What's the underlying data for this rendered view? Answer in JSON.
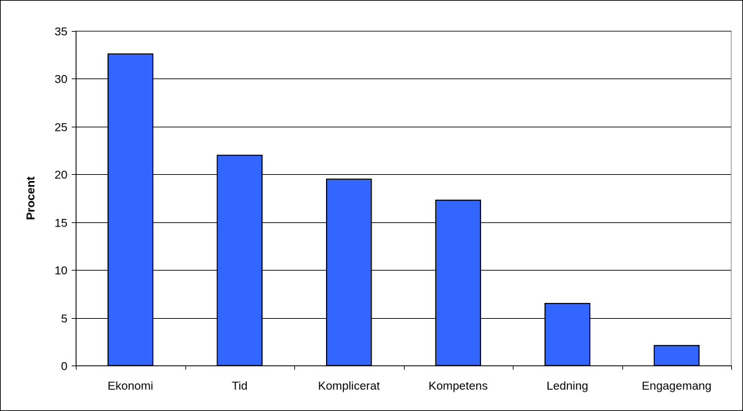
{
  "chart_data": {
    "type": "bar",
    "categories": [
      "Ekonomi",
      "Tid",
      "Komplicerat",
      "Kompetens",
      "Ledning",
      "Engagemang"
    ],
    "values": [
      32.6,
      22.0,
      19.5,
      17.3,
      6.5,
      2.1
    ],
    "title": "",
    "xlabel": "",
    "ylabel": "Procent",
    "ylim": [
      0,
      35
    ],
    "yticks": [
      0,
      5,
      10,
      15,
      20,
      25,
      30,
      35
    ],
    "grid": true,
    "legend": "none",
    "colors": {
      "bar_fill": "#3366FF",
      "bar_stroke": "#000000",
      "plot_border": "#808080",
      "gridline": "#000000"
    }
  }
}
